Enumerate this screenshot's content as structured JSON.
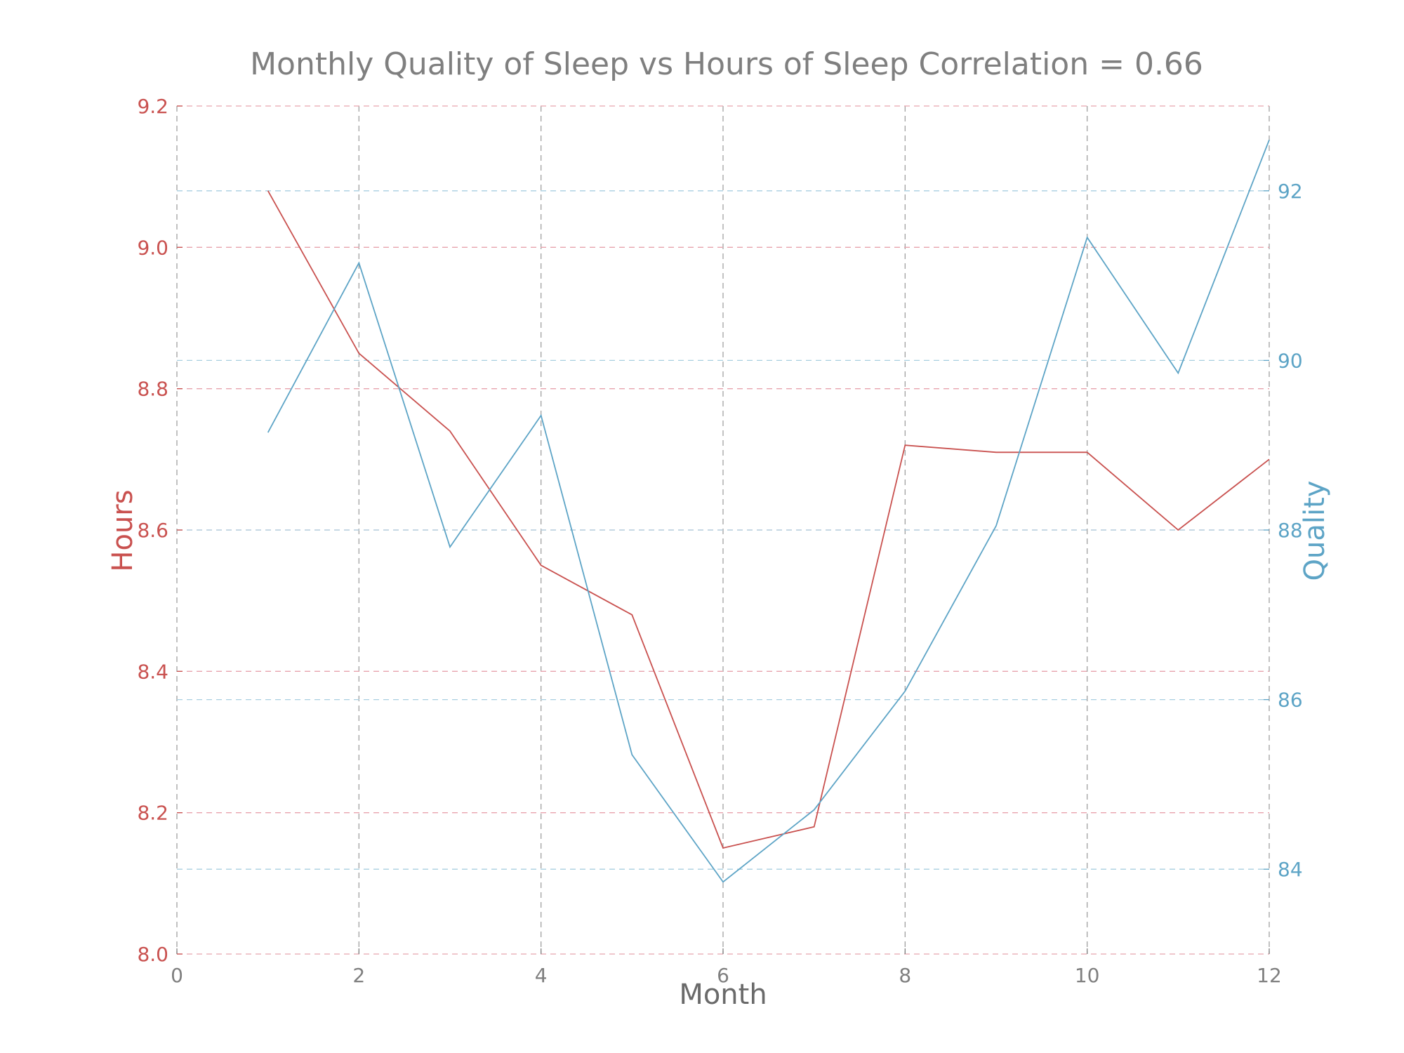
{
  "chart_data": {
    "type": "line",
    "title": "Monthly Quality of Sleep vs Hours of Sleep Correlation = 0.66",
    "xlabel": "Month",
    "ylabel_left": "Hours",
    "ylabel_right": "Quality",
    "x": [
      1,
      2,
      3,
      4,
      5,
      6,
      7,
      8,
      9,
      10,
      11,
      12
    ],
    "xlim": [
      0,
      12
    ],
    "xticks": [
      0,
      2,
      4,
      6,
      8,
      10,
      12
    ],
    "ylim_left": [
      8.0,
      9.2
    ],
    "yticks_left": [
      8.0,
      8.2,
      8.4,
      8.6,
      8.8,
      9.0,
      9.2
    ],
    "ylim_right": [
      83.0,
      93.0
    ],
    "yticks_right": [
      84,
      86,
      88,
      90,
      92
    ],
    "grid": true,
    "series": [
      {
        "name": "Hours",
        "axis": "left",
        "color": "#c9514f",
        "values": [
          9.08,
          8.85,
          8.74,
          8.55,
          8.48,
          8.15,
          8.18,
          8.72,
          8.71,
          8.71,
          8.6,
          8.7
        ]
      },
      {
        "name": "Quality",
        "axis": "right",
        "color": "#5da4c6",
        "values": [
          89.15,
          91.15,
          87.8,
          89.35,
          85.35,
          83.85,
          84.7,
          86.1,
          88.05,
          91.45,
          89.85,
          92.6
        ]
      }
    ],
    "colors": {
      "left_axis": "#c9514f",
      "right_axis": "#5da4c6",
      "x_axis": "#7f7f7f",
      "title": "#7f7f7f",
      "grid_left": "#e8a3ad",
      "grid_right": "#a8cfe0",
      "grid_x": "#a0a0a0"
    }
  }
}
